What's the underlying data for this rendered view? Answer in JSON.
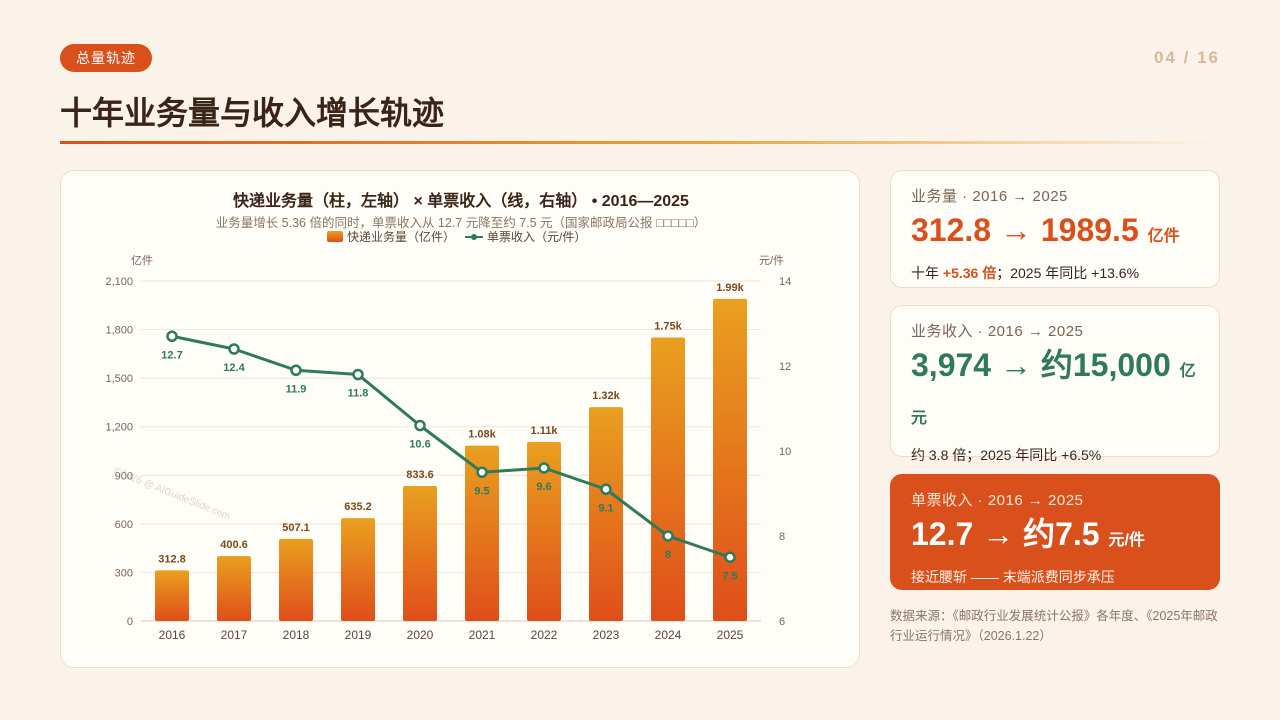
{
  "header": {
    "badge": "总量轨迹",
    "page_indicator": "04 / 16",
    "title": "十年业务量与收入增长轨迹"
  },
  "chart_data": {
    "type": "bar",
    "title": "快递业务量（柱，左轴） × 单票收入（线，右轴） • 2016—2025",
    "subtitle": "业务量增长 5.36 倍的同时，单票收入从 12.7 元降至约 7.5 元（国家邮政局公报 □□□□□）",
    "categories": [
      "2016",
      "2017",
      "2018",
      "2019",
      "2020",
      "2021",
      "2022",
      "2023",
      "2024",
      "2025"
    ],
    "series": [
      {
        "name": "快递业务量（亿件）",
        "type": "bar",
        "axis": "left",
        "values": [
          312.8,
          400.6,
          507.1,
          635.2,
          833.6,
          1083,
          1105.8,
          1320.7,
          1750.8,
          1989.5
        ],
        "labels": [
          "312.8",
          "400.6",
          "507.1",
          "635.2",
          "833.6",
          "1.08k",
          "1.11k",
          "1.32k",
          "1.75k",
          "1.99k"
        ]
      },
      {
        "name": "单票收入（元/件）",
        "type": "line",
        "axis": "right",
        "values": [
          12.7,
          12.4,
          11.9,
          11.8,
          10.6,
          9.5,
          9.6,
          9.1,
          8,
          7.5
        ],
        "labels": [
          "12.7",
          "12.4",
          "11.9",
          "11.8",
          "10.6",
          "9.5",
          "9.6",
          "9.1",
          "8",
          "7.5"
        ]
      }
    ],
    "ylabel_left": "亿件",
    "ylabel_right": "元/件",
    "ylim_left": [
      0,
      2100
    ],
    "ylim_right": [
      6,
      14
    ],
    "yticks_left": [
      "0",
      "300",
      "600",
      "900",
      "1,200",
      "1,500",
      "1,800",
      "2,100"
    ],
    "yticks_right": [
      "6",
      "8",
      "10",
      "12",
      "14"
    ],
    "legend_position": "top-center",
    "grid": true,
    "colors": {
      "bar_top": "#e9a01f",
      "bar_bottom": "#e04e1a",
      "line": "#2f7a5b",
      "bar_label": "#7a4a1e"
    }
  },
  "stats": [
    {
      "label": "业务量 · 2016 → 2025",
      "value": "312.8 → 1989.5",
      "unit": "亿件",
      "sub_prefix": "十年 ",
      "sub_highlight": "+5.36 倍",
      "sub_suffix": "；2025 年同比 +13.6%"
    },
    {
      "label": "业务收入 · 2016 → 2025",
      "value": "3,974 → 约15,000",
      "unit": "亿元",
      "sub": "约 3.8 倍；2025 年同比 +6.5%"
    },
    {
      "label": "单票收入 · 2016 → 2025",
      "value": "12.7 → 约7.5",
      "unit": "元/件",
      "sub": "接近腰斩 —— 末端派费同步承压"
    }
  ],
  "source": "数据来源：《邮政行业发展统计公报》各年度、《2025年邮政行业运行情况》（2026.1.22）",
  "watermark": "©2026 @ AIGuideSlide.com"
}
